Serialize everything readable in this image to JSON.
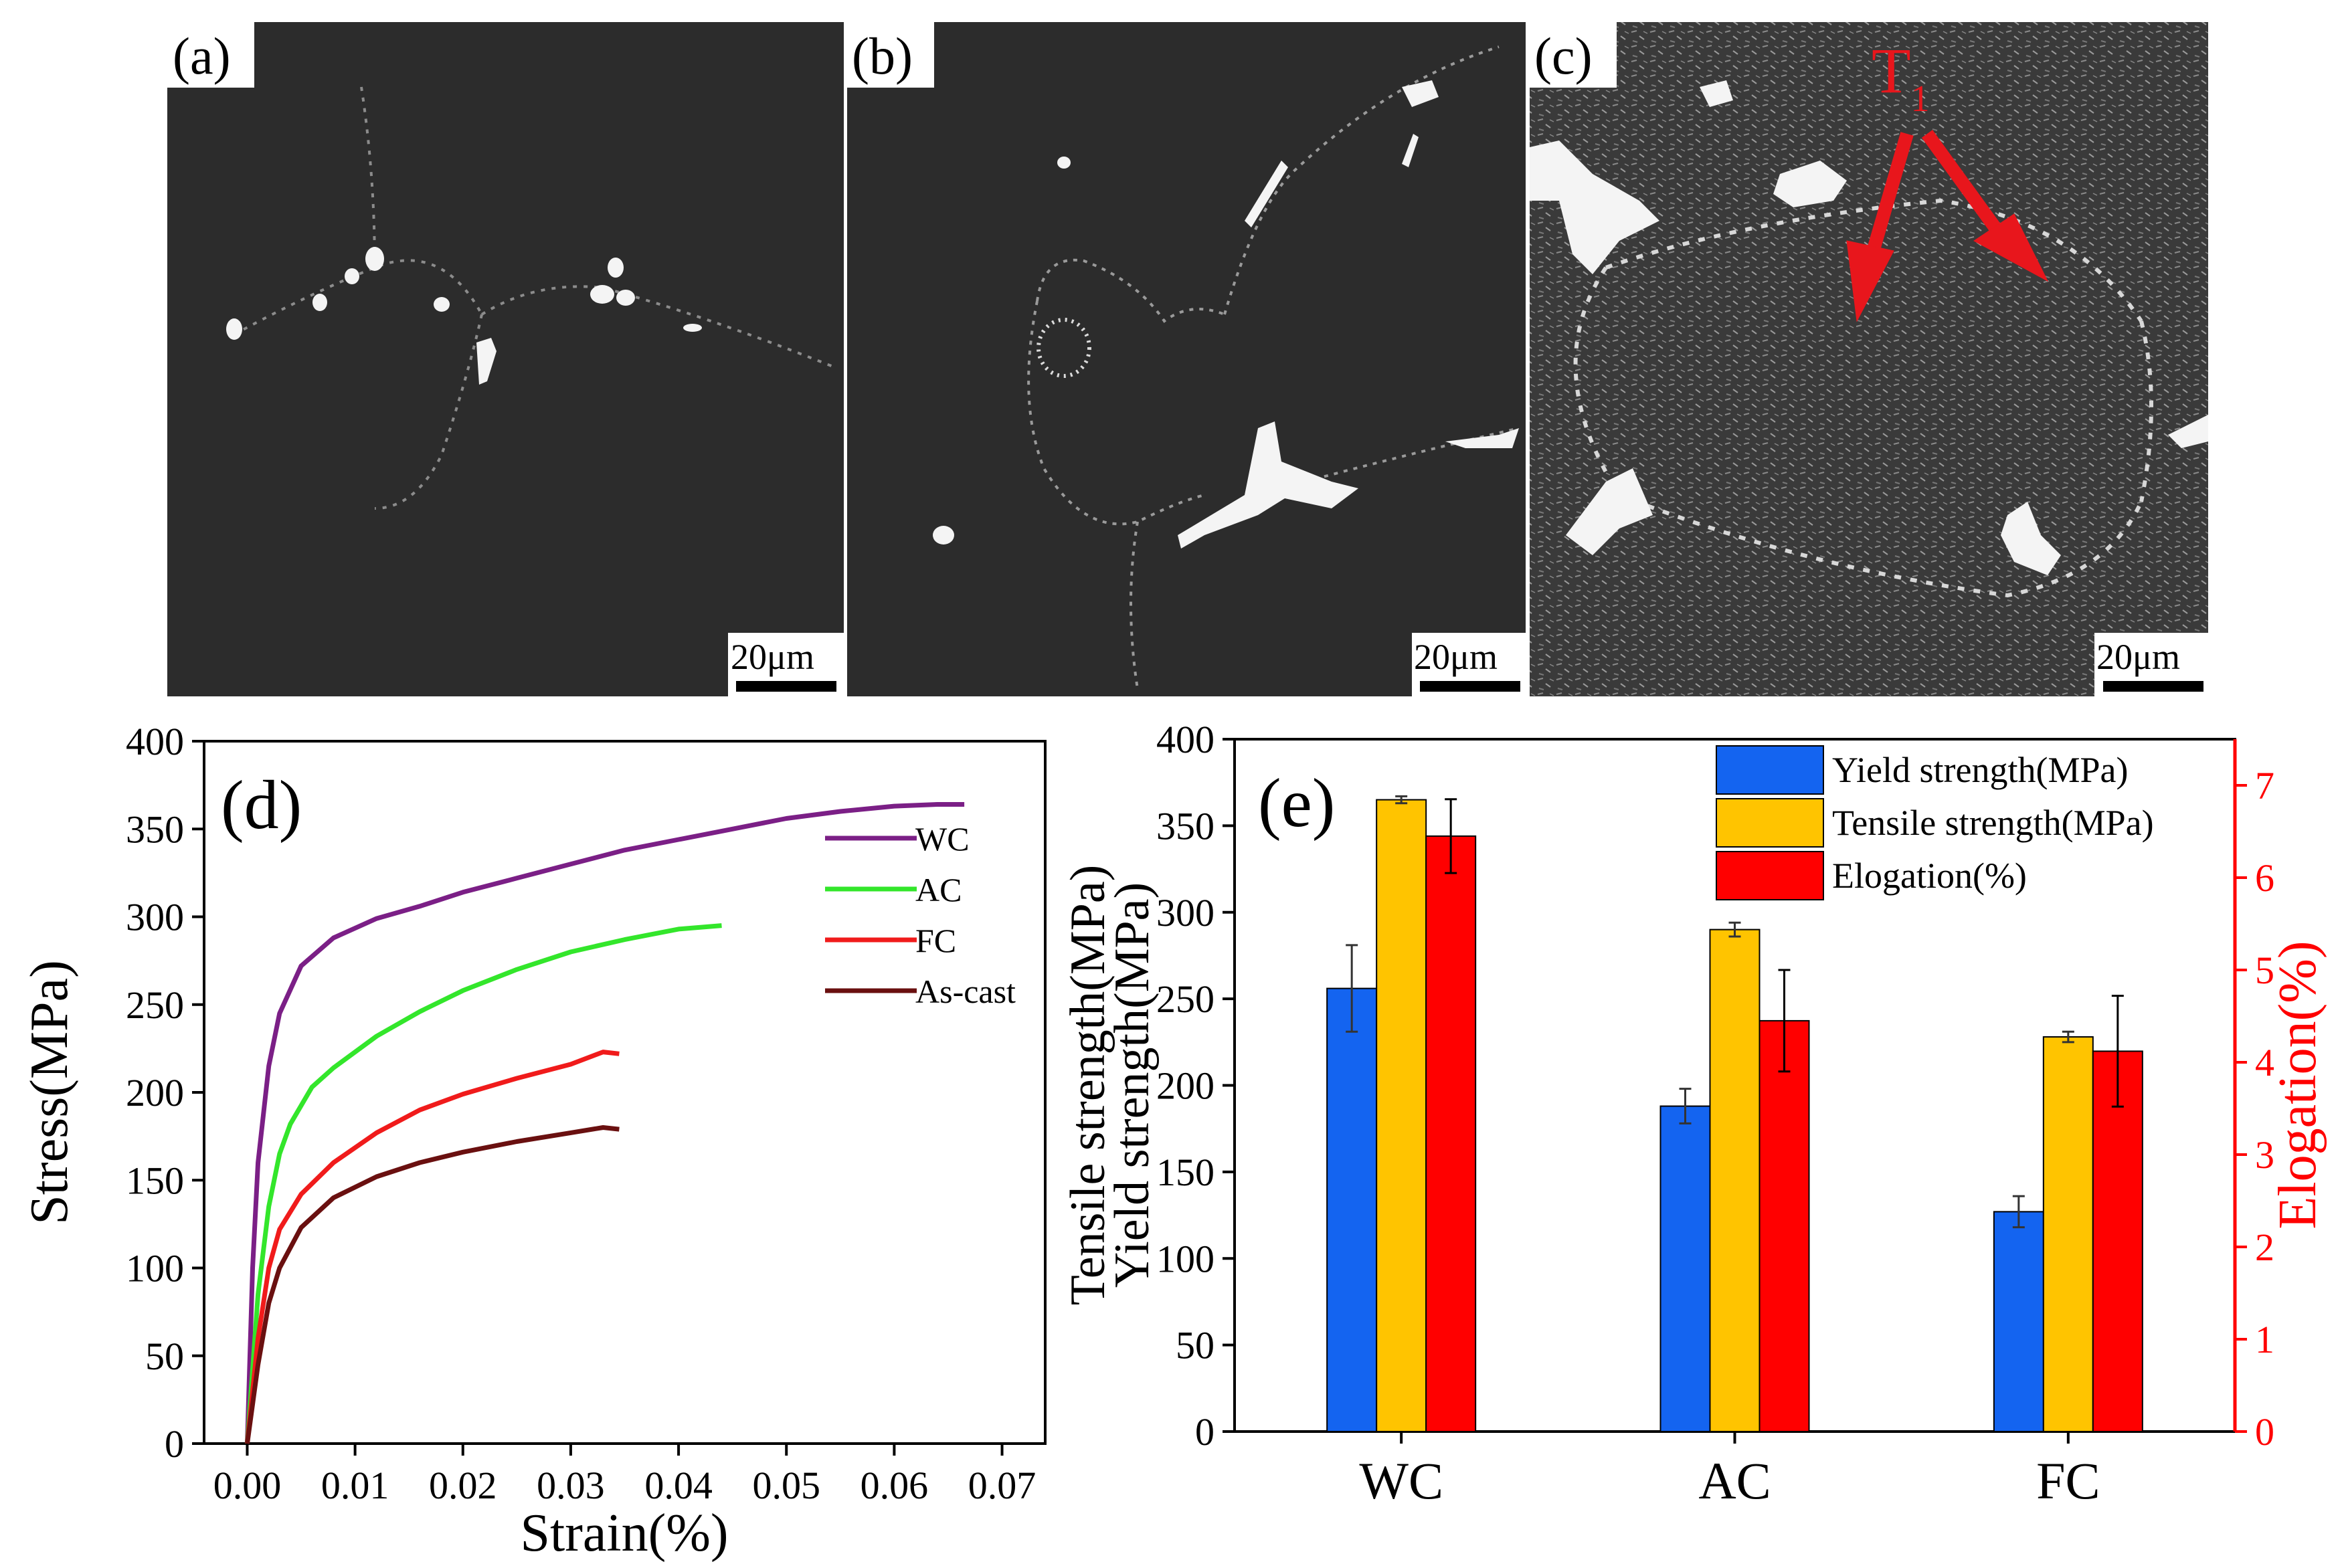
{
  "panels": {
    "a": {
      "label": "(a)",
      "scale_bar": "20μm"
    },
    "b": {
      "label": "(b)",
      "scale_bar": "20μm"
    },
    "c": {
      "label": "(c)",
      "scale_bar": "20μm",
      "annotation": "T",
      "annotation_sub": "1"
    }
  },
  "colors": {
    "micrograph_bg": "#2b2b2b",
    "phase": "#f4f4f4",
    "arrow": "#e8161c",
    "wc": "#7b1f86",
    "ac": "#33e62b",
    "fc": "#f01b1b",
    "ascast": "#6a1010",
    "yield": "#1464f0",
    "tensile": "#ffc400",
    "elong": "#ff0000"
  },
  "chart_data": [
    {
      "id": "d",
      "type": "line",
      "panel_label": "(d)",
      "xlabel": "Strain(%)",
      "ylabel": "Stress(MPa)",
      "xlim": [
        -0.004,
        0.074
      ],
      "ylim": [
        0,
        400
      ],
      "xticks": [
        0.0,
        0.01,
        0.02,
        0.03,
        0.04,
        0.05,
        0.06,
        0.07
      ],
      "xtick_labels": [
        "0.00",
        "0.01",
        "0.02",
        "0.03",
        "0.04",
        "0.05",
        "0.06",
        "0.07"
      ],
      "yticks": [
        0,
        50,
        100,
        150,
        200,
        250,
        300,
        350,
        400
      ],
      "ytick_labels": [
        "0",
        "50",
        "100",
        "150",
        "200",
        "250",
        "300",
        "350",
        "400"
      ],
      "legend_position": "right",
      "series": [
        {
          "name": "WC",
          "color": "#7b1f86",
          "x": [
            0.0,
            0.0005,
            0.001,
            0.002,
            0.003,
            0.005,
            0.008,
            0.012,
            0.016,
            0.02,
            0.025,
            0.03,
            0.035,
            0.04,
            0.045,
            0.05,
            0.055,
            0.06,
            0.064,
            0.0665
          ],
          "y": [
            0,
            100,
            160,
            215,
            245,
            272,
            288,
            299,
            306,
            314,
            322,
            330,
            338,
            344,
            350,
            356,
            360,
            363,
            364,
            364
          ]
        },
        {
          "name": "AC",
          "color": "#33e62b",
          "x": [
            0.0,
            0.001,
            0.002,
            0.003,
            0.004,
            0.006,
            0.008,
            0.012,
            0.016,
            0.02,
            0.025,
            0.03,
            0.035,
            0.04,
            0.044
          ],
          "y": [
            0,
            85,
            135,
            165,
            182,
            203,
            214,
            232,
            246,
            258,
            270,
            280,
            287,
            293,
            295
          ]
        },
        {
          "name": "FC",
          "color": "#f01b1b",
          "x": [
            0.0,
            0.001,
            0.002,
            0.003,
            0.005,
            0.008,
            0.012,
            0.016,
            0.02,
            0.025,
            0.03,
            0.033,
            0.0345
          ],
          "y": [
            0,
            60,
            100,
            122,
            142,
            160,
            177,
            190,
            199,
            208,
            216,
            223,
            222
          ]
        },
        {
          "name": "As-cast",
          "color": "#6a1010",
          "x": [
            0.0,
            0.001,
            0.002,
            0.003,
            0.005,
            0.008,
            0.012,
            0.016,
            0.02,
            0.025,
            0.03,
            0.033,
            0.0345
          ],
          "y": [
            0,
            45,
            80,
            100,
            123,
            140,
            152,
            160,
            166,
            172,
            177,
            180,
            179
          ]
        }
      ]
    },
    {
      "id": "e",
      "type": "bar",
      "panel_label": "(e)",
      "categories": [
        "WC",
        "AC",
        "FC"
      ],
      "ylabel_lines": [
        "Tensile strength(MPa)",
        "Yield strength(MPa)"
      ],
      "ylabel_right": "Elogation(%)",
      "ylim": [
        0,
        400
      ],
      "ylim_right": [
        0,
        7.5
      ],
      "yticks": [
        0,
        50,
        100,
        150,
        200,
        250,
        300,
        350,
        400
      ],
      "ytick_labels": [
        "0",
        "50",
        "100",
        "150",
        "200",
        "250",
        "300",
        "350",
        "400"
      ],
      "yticks_right": [
        0,
        1,
        2,
        3,
        4,
        5,
        6,
        7
      ],
      "ytick_labels_right": [
        "0",
        "1",
        "2",
        "3",
        "4",
        "5",
        "6",
        "7"
      ],
      "legend_position": "top-right",
      "series": [
        {
          "name": "Yield strength(MPa)",
          "axis": "left",
          "color": "#1464f0",
          "values": [
            256,
            188,
            127
          ],
          "errors": [
            25,
            10,
            9
          ]
        },
        {
          "name": "Tensile strength(MPa)",
          "axis": "left",
          "color": "#ffc400",
          "values": [
            365,
            290,
            228
          ],
          "errors": [
            2,
            4,
            3
          ]
        },
        {
          "name": "Elogation(%)",
          "legend_label": " Elogation(%)",
          "axis": "right",
          "color": "#ff0000",
          "values": [
            6.45,
            4.45,
            4.12
          ],
          "errors": [
            0.4,
            0.55,
            0.6
          ]
        }
      ]
    }
  ]
}
